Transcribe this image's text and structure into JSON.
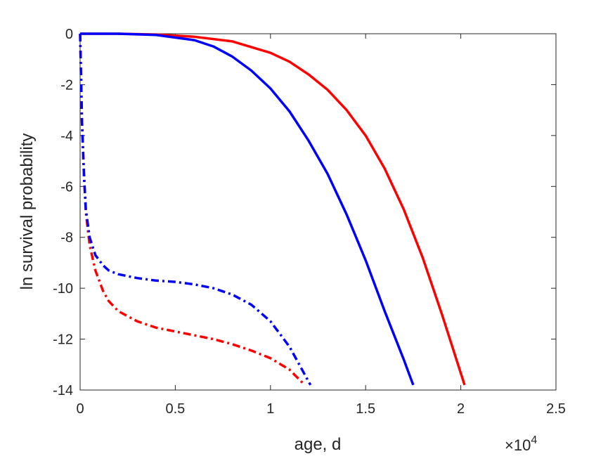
{
  "chart_data": {
    "type": "line",
    "title": "",
    "xlabel": "age, d",
    "ylabel": "ln survival probability",
    "x_exponent_label": {
      "base": "×10",
      "power": "4"
    },
    "xlim": [
      0,
      25000
    ],
    "ylim": [
      -14,
      0
    ],
    "x_ticks": [
      0,
      5000,
      10000,
      15000,
      20000,
      25000
    ],
    "x_tick_labels": [
      "0",
      "0.5",
      "1",
      "1.5",
      "2",
      "2.5"
    ],
    "y_ticks": [
      0,
      -2,
      -4,
      -6,
      -8,
      -10,
      -12,
      -14
    ],
    "y_tick_labels": [
      "0",
      "-2",
      "-4",
      "-6",
      "-8",
      "-10",
      "-12",
      "-14"
    ],
    "grid": false,
    "legend": "none",
    "colors": {
      "red": "#ff0000",
      "blue": "#0000ff",
      "axis": "#262626"
    },
    "series": [
      {
        "color": "#ff0000",
        "style": "solid",
        "x": [
          0,
          2000,
          4000,
          6000,
          8000,
          10000,
          11000,
          12000,
          13000,
          14000,
          15000,
          16000,
          17000,
          18000,
          19000,
          20200
        ],
        "y": [
          0,
          0,
          -0.03,
          -0.12,
          -0.3,
          -0.75,
          -1.1,
          -1.6,
          -2.2,
          -3.0,
          -4.0,
          -5.3,
          -6.9,
          -8.8,
          -11.0,
          -13.8
        ]
      },
      {
        "color": "#0000ff",
        "style": "solid",
        "x": [
          0,
          2000,
          4000,
          6000,
          7000,
          8000,
          9000,
          10000,
          11000,
          12000,
          13000,
          14000,
          15000,
          16000,
          17000,
          17500
        ],
        "y": [
          0,
          0,
          -0.05,
          -0.25,
          -0.5,
          -0.9,
          -1.45,
          -2.15,
          -3.05,
          -4.2,
          -5.5,
          -7.1,
          -8.9,
          -10.9,
          -12.8,
          -13.8
        ]
      },
      {
        "color": "#ff0000",
        "style": "dashdot",
        "x": [
          0,
          100,
          200,
          300,
          500,
          800,
          1200,
          1500,
          2000,
          3000,
          4000,
          5000,
          6000,
          7000,
          8000,
          9000,
          10000,
          11000,
          11800
        ],
        "y": [
          0,
          -3.5,
          -5.5,
          -7.0,
          -8.3,
          -9.3,
          -10.1,
          -10.5,
          -10.9,
          -11.3,
          -11.55,
          -11.7,
          -11.85,
          -12.0,
          -12.2,
          -12.45,
          -12.75,
          -13.2,
          -13.8
        ]
      },
      {
        "color": "#0000ff",
        "style": "dashdot",
        "x": [
          0,
          100,
          200,
          300,
          500,
          800,
          1200,
          1500,
          2000,
          3000,
          4000,
          5000,
          6000,
          7000,
          8000,
          9000,
          10000,
          11000,
          12100
        ],
        "y": [
          0,
          -3.5,
          -5.5,
          -6.9,
          -8.0,
          -8.7,
          -9.1,
          -9.3,
          -9.45,
          -9.6,
          -9.7,
          -9.75,
          -9.85,
          -10.0,
          -10.25,
          -10.65,
          -11.3,
          -12.3,
          -13.8
        ]
      }
    ]
  }
}
